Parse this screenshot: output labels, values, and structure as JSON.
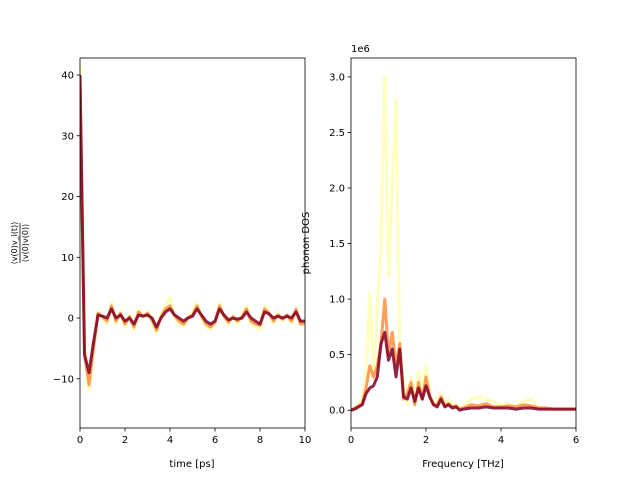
{
  "chart_data": [
    {
      "type": "line",
      "xlabel": "time [ps]",
      "ylabel_numerator": "⟨v(0)v_i(t)⟩",
      "ylabel_denominator": "⟨v(0)v(0)⟩",
      "xlim": [
        0,
        10
      ],
      "ylim": [
        -18.1,
        42.8
      ],
      "xticks": [
        0,
        2,
        4,
        6,
        8,
        10
      ],
      "yticks": [
        -10,
        0,
        10,
        20,
        30,
        40
      ],
      "grid": false,
      "x": [
        0,
        0.2,
        0.4,
        0.6,
        0.8,
        1.0,
        1.2,
        1.4,
        1.6,
        1.8,
        2.0,
        2.2,
        2.4,
        2.6,
        2.8,
        3.0,
        3.2,
        3.4,
        3.6,
        3.8,
        4.0,
        4.2,
        4.4,
        4.6,
        4.8,
        5.0,
        5.2,
        5.4,
        5.6,
        5.8,
        6.0,
        6.2,
        6.4,
        6.6,
        6.8,
        7.0,
        7.2,
        7.4,
        7.6,
        7.8,
        8.0,
        8.2,
        8.4,
        8.6,
        8.8,
        9.0,
        9.2,
        9.4,
        9.6,
        9.8,
        10.0
      ],
      "series": [
        {
          "color": "#ffffb2",
          "values": [
            42,
            -4,
            -12,
            -5,
            1,
            0,
            -1,
            2.5,
            -1,
            1,
            -1.5,
            0.5,
            -2,
            1.5,
            0,
            1,
            -0.5,
            -2.5,
            0.5,
            2,
            3.5,
            0,
            -1,
            -1.5,
            0,
            1,
            2.5,
            0,
            -1.5,
            -2,
            -1,
            2.5,
            0,
            -1,
            0.5,
            -1,
            0.5,
            2,
            -1,
            -1.5,
            -2,
            2,
            1,
            -1,
            1,
            -0.5,
            0.5,
            -1,
            1.5,
            -1,
            -1
          ]
        },
        {
          "color": "#fd8d3c",
          "values": [
            38,
            -6,
            -11,
            -5,
            0.8,
            0.2,
            -0.5,
            2,
            -0.5,
            0.8,
            -1,
            0.2,
            -1.5,
            1,
            0.3,
            0.8,
            -0.3,
            -2,
            0.2,
            1.5,
            2,
            0.5,
            -0.5,
            -1,
            0,
            0.5,
            2,
            0.3,
            -1,
            -1.5,
            -0.7,
            2,
            0.3,
            -0.7,
            0.2,
            -0.5,
            0.2,
            1.5,
            -0.5,
            -1,
            -1.2,
            1.5,
            0.8,
            -0.5,
            0.5,
            -0.2,
            0.5,
            -0.5,
            1.5,
            -1,
            -0.8
          ]
        },
        {
          "color": "#800026",
          "values": [
            40,
            -6,
            -9,
            -4,
            0.5,
            0.3,
            0,
            1.5,
            0,
            0.5,
            -0.5,
            0,
            -1,
            0.5,
            0.3,
            0.5,
            0,
            -1.5,
            0,
            1,
            1.5,
            0.5,
            0,
            -0.5,
            0,
            0.3,
            1.5,
            0.5,
            -0.5,
            -1,
            -0.5,
            1.5,
            0.5,
            -0.3,
            0,
            -0.2,
            0,
            1,
            0,
            -0.5,
            -1,
            1,
            0.7,
            0,
            0.3,
            0,
            0.3,
            0,
            1,
            -0.5,
            -0.5
          ]
        }
      ]
    },
    {
      "type": "line",
      "xlabel": "Frequency [THz]",
      "ylabel": "phonon DOS",
      "offset_text": "1e6",
      "xlim": [
        0,
        6
      ],
      "ylim": [
        -0.16,
        3.17
      ],
      "xticks": [
        0,
        2,
        4,
        6
      ],
      "yticks": [
        "0.0",
        "0.5",
        "1.0",
        "1.5",
        "2.0",
        "2.5",
        "3.0"
      ],
      "grid": false,
      "x": [
        0,
        0.1,
        0.2,
        0.3,
        0.4,
        0.5,
        0.6,
        0.7,
        0.8,
        0.9,
        1.0,
        1.1,
        1.2,
        1.3,
        1.4,
        1.5,
        1.6,
        1.7,
        1.8,
        1.9,
        2.0,
        2.1,
        2.2,
        2.3,
        2.4,
        2.5,
        2.6,
        2.7,
        2.8,
        2.9,
        3.0,
        3.2,
        3.4,
        3.6,
        3.8,
        4.0,
        4.2,
        4.4,
        4.6,
        4.8,
        5.0,
        5.2,
        5.4,
        5.6,
        5.8,
        6.0
      ],
      "series": [
        {
          "color": "#ffffb2",
          "values": [
            0,
            0.01,
            0.05,
            0.1,
            0.3,
            1.05,
            0.3,
            0.9,
            1.5,
            3.0,
            1.2,
            2.0,
            2.8,
            0.5,
            0.3,
            0.05,
            0.3,
            0.05,
            0.35,
            0.1,
            0.4,
            0.15,
            0.05,
            0.1,
            0.15,
            0.05,
            0.1,
            0.05,
            0.05,
            0.02,
            0.04,
            0.1,
            0.12,
            0.1,
            0.08,
            0.05,
            0.06,
            0.04,
            0.08,
            0.1,
            0.03,
            0.02,
            0.01,
            0.01,
            0.01,
            0.01
          ]
        },
        {
          "color": "#fd8d3c",
          "values": [
            0,
            0.02,
            0.04,
            0.06,
            0.2,
            0.4,
            0.3,
            0.4,
            0.6,
            1.0,
            0.5,
            0.7,
            0.4,
            0.6,
            0.1,
            0.15,
            0.25,
            0.05,
            0.25,
            0.1,
            0.3,
            0.12,
            0.05,
            0.05,
            0.12,
            0.04,
            0.06,
            0.03,
            0.04,
            0.01,
            0.02,
            0.05,
            0.04,
            0.06,
            0.03,
            0.03,
            0.04,
            0.03,
            0.05,
            0.04,
            0.02,
            0.02,
            0.01,
            0.01,
            0.01,
            0.01
          ]
        },
        {
          "color": "#800026",
          "values": [
            0,
            0.01,
            0.03,
            0.05,
            0.15,
            0.2,
            0.22,
            0.3,
            0.6,
            0.7,
            0.45,
            0.55,
            0.3,
            0.55,
            0.12,
            0.1,
            0.2,
            0.08,
            0.2,
            0.1,
            0.22,
            0.12,
            0.05,
            0.03,
            0.1,
            0.03,
            0.05,
            0.02,
            0.03,
            0,
            0.01,
            0.02,
            0.02,
            0.03,
            0.02,
            0.02,
            0.02,
            0.01,
            0.02,
            0.02,
            0.01,
            0.01,
            0.01,
            0.01,
            0.01,
            0.01
          ]
        }
      ]
    }
  ]
}
